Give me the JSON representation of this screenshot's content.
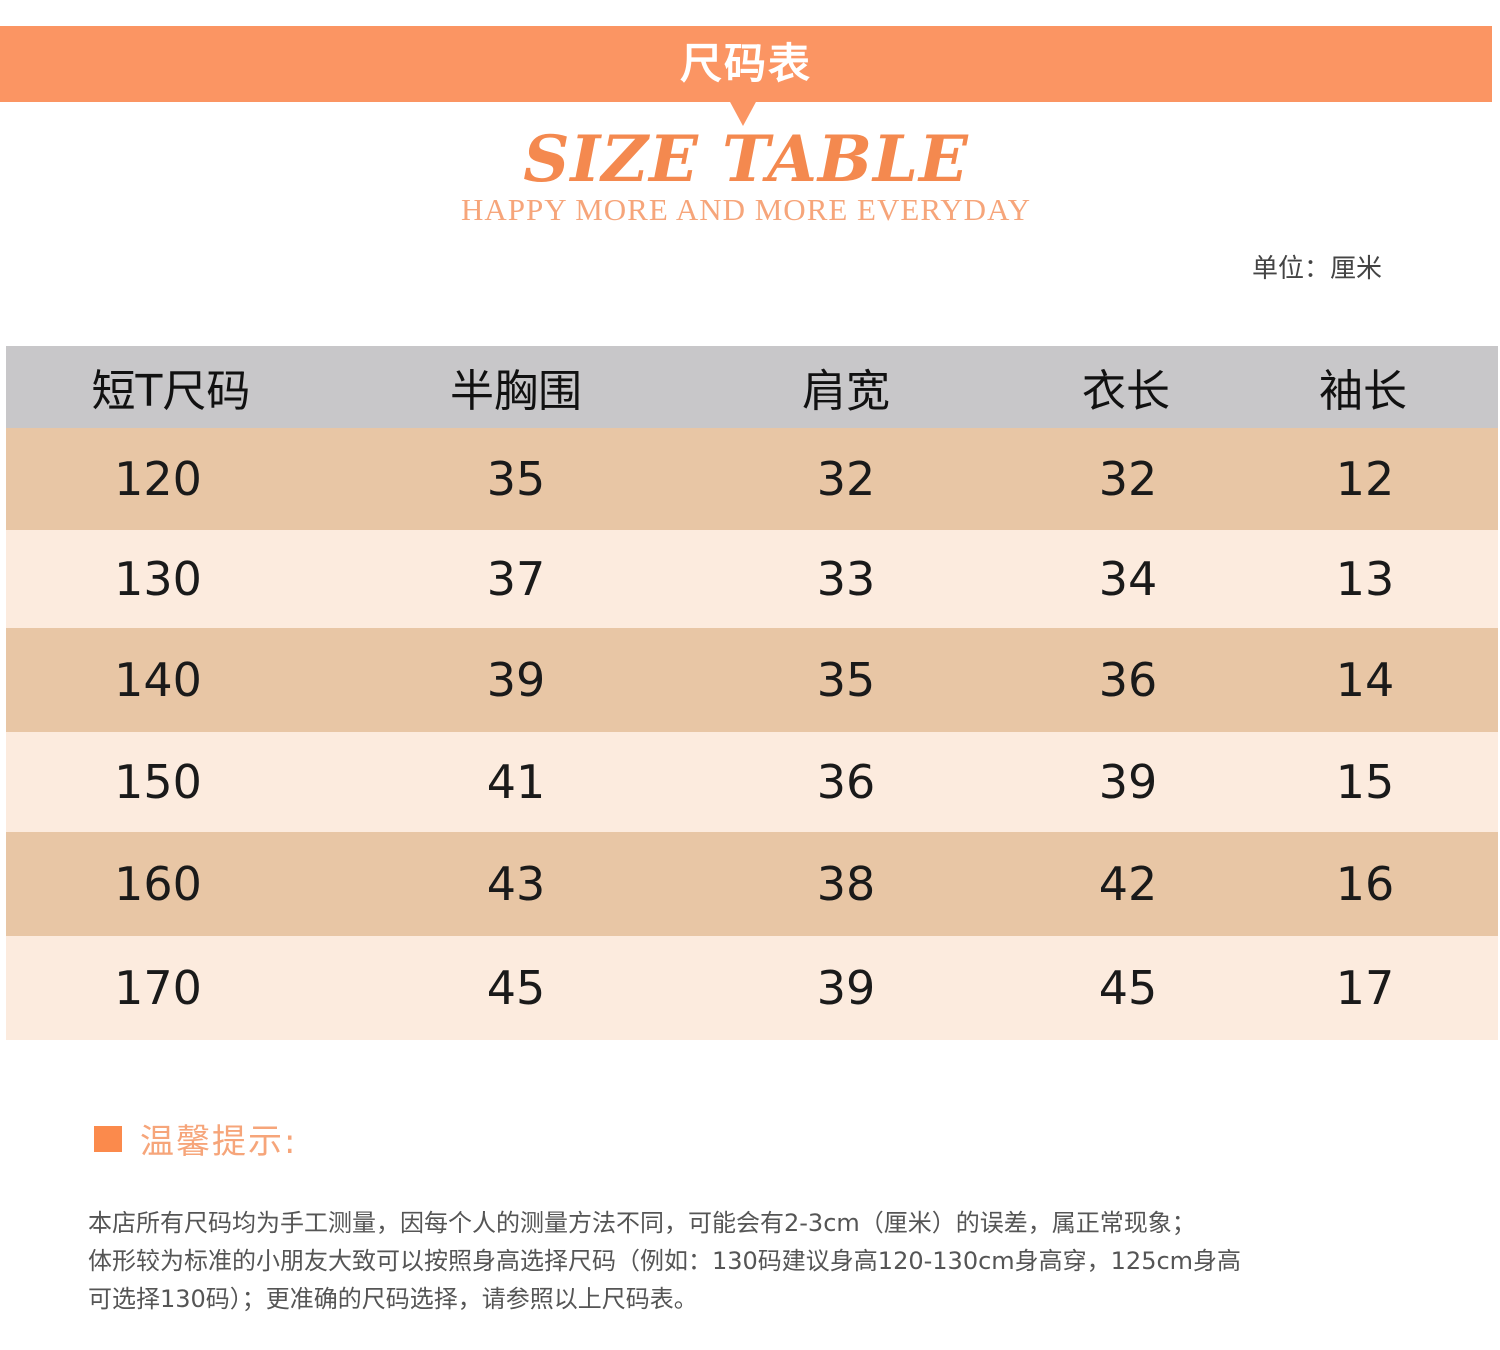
{
  "header": {
    "title_cn": "尺码表",
    "title_en": "SIZE TABLE",
    "subtitle": "HAPPY MORE AND MORE EVERYDAY",
    "unit": "单位：厘米"
  },
  "table": {
    "columns": [
      "短T尺码",
      "半胸围",
      "肩宽",
      "衣长",
      "袖长"
    ],
    "rows": [
      [
        "120",
        "35",
        "32",
        "32",
        "12"
      ],
      [
        "130",
        "37",
        "33",
        "34",
        "13"
      ],
      [
        "140",
        "39",
        "35",
        "36",
        "14"
      ],
      [
        "150",
        "41",
        "36",
        "39",
        "15"
      ],
      [
        "160",
        "43",
        "38",
        "42",
        "16"
      ],
      [
        "170",
        "45",
        "39",
        "45",
        "17"
      ]
    ]
  },
  "tips": {
    "title": "温馨提示:",
    "lines": [
      "本店所有尺码均为手工测量，因每个人的测量方法不同，可能会有2-3cm（厘米）的误差，属正常现象；",
      "体形较为标准的小朋友大致可以按照身高选择尺码（例如：130码建议身高120-130cm身高穿，125cm身高",
      "可选择130码）；更准确的尺码选择，请参照以上尺码表。"
    ]
  },
  "colors": {
    "accent": "#fb9563",
    "header_row": "#c8c7c9",
    "row_dark": "#e8c6a5",
    "row_light": "#fcebde"
  }
}
